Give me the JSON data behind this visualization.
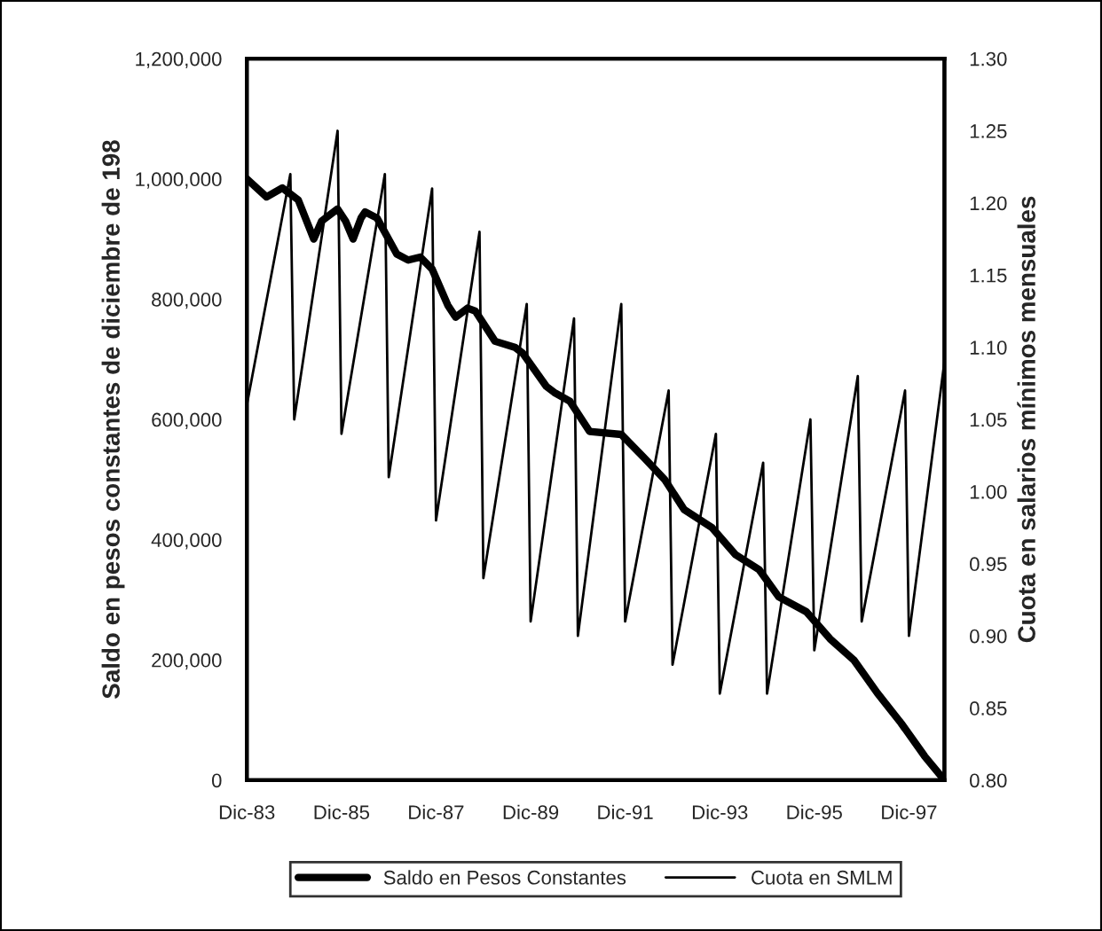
{
  "chart_data": {
    "type": "line",
    "xlabel": null,
    "ylabel": "Saldo en pesos constantes de diciembre de 198",
    "y2label": "Cuota en salarios mínimos mensuales",
    "series": [
      {
        "name": "Saldo en Pesos Constantes",
        "color": "#000000",
        "x": [
          "1983-12",
          "1984-05",
          "1984-09",
          "1984-10",
          "1985-01",
          "1985-05",
          "1985-07",
          "1985-11",
          "1986-01",
          "1986-03",
          "1986-05",
          "1986-06",
          "1986-09",
          "1987-02",
          "1987-05",
          "1987-08",
          "1987-11",
          "1988-03",
          "1988-05",
          "1988-08",
          "1988-10",
          "1989-03",
          "1989-08",
          "1989-10",
          "1990-04",
          "1990-06",
          "1990-10",
          "1991-03",
          "1991-11",
          "1992-05",
          "1992-10",
          "1993-03",
          "1993-10",
          "1994-04",
          "1994-10",
          "1995-03",
          "1995-10",
          "1996-04",
          "1996-10",
          "1997-04",
          "1997-10",
          "1998-04",
          "1998-09"
        ],
        "values": [
          1000000,
          970000,
          985000,
          980000,
          965000,
          900000,
          930000,
          950000,
          930000,
          900000,
          935000,
          945000,
          935000,
          875000,
          865000,
          870000,
          850000,
          790000,
          770000,
          785000,
          780000,
          730000,
          720000,
          710000,
          655000,
          645000,
          630000,
          580000,
          575000,
          535000,
          500000,
          450000,
          420000,
          375000,
          350000,
          305000,
          280000,
          235000,
          200000,
          145000,
          95000,
          40000,
          0
        ]
      },
      {
        "name": "Cuota en SMLM",
        "color": "#000000",
        "axis": "y2",
        "x": [
          "1983-12",
          "1984-11",
          "1984-12",
          "1985-11",
          "1985-12",
          "1986-11",
          "1986-12",
          "1987-11",
          "1987-12",
          "1988-11",
          "1988-12",
          "1989-11",
          "1989-12",
          "1990-11",
          "1990-12",
          "1991-11",
          "1991-12",
          "1992-11",
          "1992-12",
          "1993-11",
          "1993-12",
          "1994-11",
          "1994-12",
          "1995-11",
          "1995-12",
          "1996-11",
          "1996-12",
          "1997-11",
          "1997-12",
          "1998-09"
        ],
        "values": [
          1.06,
          1.22,
          1.05,
          1.25,
          1.04,
          1.22,
          1.01,
          1.21,
          0.98,
          1.18,
          0.94,
          1.13,
          0.91,
          1.12,
          0.9,
          1.13,
          0.91,
          1.07,
          0.88,
          1.04,
          0.86,
          1.02,
          0.86,
          1.05,
          0.89,
          1.08,
          0.91,
          1.07,
          0.9,
          1.09
        ]
      }
    ],
    "xlim": [
      "1983-12",
      "1998-09"
    ],
    "xticks": [
      {
        "value": "1983-12",
        "label": "Dic-83"
      },
      {
        "value": "1985-12",
        "label": "Dic-85"
      },
      {
        "value": "1987-12",
        "label": "Dic-87"
      },
      {
        "value": "1989-12",
        "label": "Dic-89"
      },
      {
        "value": "1991-12",
        "label": "Dic-91"
      },
      {
        "value": "1993-12",
        "label": "Dic-93"
      },
      {
        "value": "1995-12",
        "label": "Dic-95"
      },
      {
        "value": "1997-12",
        "label": "Dic-97"
      }
    ],
    "ylim": [
      0,
      1200000
    ],
    "yticks": [
      0,
      {
        "value": 200000,
        "label": "200,000"
      },
      {
        "value": 400000,
        "label": "400,000"
      },
      {
        "value": 600000,
        "label": "600,000"
      },
      {
        "value": 800000,
        "label": "800,000"
      },
      {
        "value": 1000000,
        "label": "1,000,000"
      },
      {
        "value": 1200000,
        "label": "1,200,000"
      }
    ],
    "y2lim": [
      0.8,
      1.3
    ],
    "y2ticks": [
      {
        "value": 0.8,
        "label": "0.80"
      },
      {
        "value": 0.85,
        "label": "0.85"
      },
      {
        "value": 0.9,
        "label": "0.90"
      },
      {
        "value": 0.95,
        "label": "0.95"
      },
      {
        "value": 1.0,
        "label": "1.00"
      },
      {
        "value": 1.05,
        "label": "1.05"
      },
      {
        "value": 1.1,
        "label": "1.10"
      },
      {
        "value": 1.15,
        "label": "1.15"
      },
      {
        "value": 1.2,
        "label": "1.20"
      },
      {
        "value": 1.25,
        "label": "1.25"
      },
      {
        "value": 1.3,
        "label": "1.30"
      }
    ],
    "grid": false,
    "legend": "bottom",
    "marker": "none",
    "line_style": "solid"
  }
}
